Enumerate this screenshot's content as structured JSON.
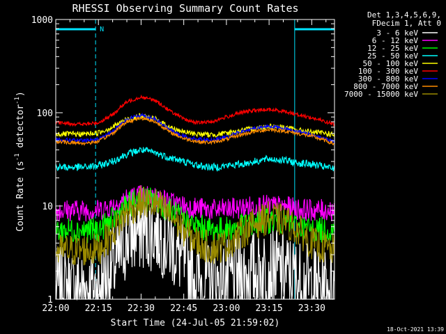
{
  "chart_data": {
    "type": "line",
    "title": "RHESSI Observing Summary Count Rates",
    "xlabel": "Start Time (24-Jul-05 21:59:02)",
    "ylabel_parts": [
      "Count Rate (s",
      "-1",
      " detector",
      "-1",
      ")"
    ],
    "x_ticks": [
      "22:00",
      "22:15",
      "22:30",
      "22:45",
      "23:00",
      "23:15",
      "23:30"
    ],
    "x_tick_minutes": [
      0,
      15,
      30,
      45,
      60,
      75,
      90
    ],
    "y_ticks": [
      "1",
      "10",
      "100",
      "1000"
    ],
    "y_tick_values": [
      1,
      10,
      100,
      1000
    ],
    "x_range_minutes": [
      0,
      98
    ],
    "y_range": [
      1,
      1000
    ],
    "y_scale": "log",
    "legend_header": [
      "Det 1,3,4,5,6,9,",
      "FDecim 1, Att 0"
    ],
    "timestamp": "18-Oct-2021 13:39",
    "night_marker_label": "N",
    "night_intervals_minutes": [
      [
        0,
        14
      ],
      [
        84,
        98
      ]
    ],
    "night_dashed_minutes": [
      14,
      98
    ],
    "night_solid_minutes": [
      0,
      84
    ],
    "colors": {
      "night": "#00e5ff",
      "axes": "#ffffff"
    },
    "series": [
      {
        "name": "3 - 6 keV",
        "color": "#ffffff",
        "x": [
          0,
          15,
          22,
          25,
          30,
          35,
          40,
          45,
          50,
          55,
          60,
          65,
          70,
          75,
          80,
          85,
          90,
          95,
          98
        ],
        "y": [
          1.3,
          1.3,
          2.5,
          4.5,
          5.5,
          5.5,
          4.0,
          2.5,
          1.6,
          1.5,
          1.6,
          1.8,
          2.0,
          2.2,
          2.0,
          1.6,
          1.4,
          1.3,
          1.3
        ],
        "noise": 0.45
      },
      {
        "name": "6 - 12 keV",
        "color": "#ff00ff",
        "x": [
          0,
          15,
          20,
          25,
          30,
          35,
          40,
          45,
          50,
          55,
          60,
          65,
          70,
          75,
          80,
          85,
          90,
          95,
          98
        ],
        "y": [
          9.0,
          9.0,
          10.0,
          12.0,
          13.0,
          12.5,
          11.0,
          10.0,
          9.5,
          9.0,
          9.2,
          9.5,
          10.0,
          10.0,
          9.8,
          9.3,
          9.0,
          9.0,
          9.0
        ],
        "noise": 0.12
      },
      {
        "name": "12 - 25 keV",
        "color": "#00ff00",
        "x": [
          0,
          15,
          20,
          25,
          30,
          35,
          40,
          45,
          50,
          55,
          60,
          65,
          70,
          75,
          80,
          85,
          90,
          95,
          98
        ],
        "y": [
          5.5,
          5.5,
          7.0,
          10.0,
          12.0,
          11.5,
          9.0,
          7.0,
          6.0,
          5.5,
          5.6,
          6.0,
          6.5,
          7.0,
          6.8,
          6.0,
          5.6,
          5.5,
          5.5
        ],
        "noise": 0.14
      },
      {
        "name": "25 - 50 keV",
        "color": "#00ffff",
        "x": [
          0,
          10,
          15,
          20,
          25,
          30,
          35,
          40,
          45,
          50,
          55,
          60,
          65,
          70,
          75,
          80,
          85,
          90,
          95,
          98
        ],
        "y": [
          26,
          26,
          27,
          30,
          36,
          40,
          37,
          33,
          30,
          27,
          26,
          27,
          28,
          30,
          32,
          31,
          29,
          28,
          26,
          25
        ],
        "noise": 0.04
      },
      {
        "name": "50 - 100 keV",
        "color": "#ffff00",
        "x": [
          0,
          10,
          15,
          20,
          25,
          30,
          35,
          40,
          45,
          50,
          55,
          60,
          65,
          70,
          75,
          80,
          85,
          90,
          95,
          98
        ],
        "y": [
          59,
          59,
          61,
          70,
          85,
          92,
          85,
          70,
          62,
          59,
          58,
          60,
          64,
          68,
          72,
          70,
          65,
          62,
          60,
          58
        ],
        "noise": 0.03
      },
      {
        "name": "100 - 300 keV",
        "color": "#ff0000",
        "x": [
          0,
          10,
          15,
          20,
          25,
          30,
          35,
          40,
          45,
          50,
          55,
          60,
          65,
          70,
          75,
          80,
          85,
          90,
          95,
          98
        ],
        "y": [
          78,
          75,
          78,
          95,
          130,
          148,
          135,
          105,
          85,
          78,
          80,
          90,
          100,
          106,
          108,
          104,
          96,
          88,
          80,
          75
        ],
        "noise": 0.02
      },
      {
        "name": "300 - 800 keV",
        "color": "#0000ff",
        "x": [
          0,
          10,
          15,
          20,
          25,
          30,
          35,
          40,
          45,
          50,
          55,
          60,
          65,
          70,
          75,
          80,
          85,
          90,
          95,
          98
        ],
        "y": [
          52,
          50,
          52,
          62,
          85,
          95,
          85,
          65,
          56,
          52,
          51,
          55,
          62,
          68,
          72,
          68,
          63,
          58,
          52,
          48
        ],
        "noise": 0.02
      },
      {
        "name": "800 - 7000 keV",
        "color": "#ff8c00",
        "x": [
          0,
          10,
          15,
          20,
          25,
          30,
          35,
          40,
          45,
          50,
          55,
          60,
          65,
          70,
          75,
          80,
          85,
          90,
          95,
          98
        ],
        "y": [
          49,
          47,
          49,
          60,
          80,
          88,
          80,
          62,
          53,
          49,
          48,
          52,
          58,
          63,
          66,
          64,
          60,
          56,
          50,
          46
        ],
        "noise": 0.02
      },
      {
        "name": "7000 - 15000 keV",
        "color": "#9a8a00",
        "x": [
          0,
          15,
          20,
          25,
          30,
          35,
          40,
          45,
          50,
          55,
          60,
          65,
          70,
          75,
          80,
          85,
          90,
          95,
          98
        ],
        "y": [
          3.3,
          3.4,
          5.0,
          8.5,
          11.0,
          10.5,
          8.0,
          5.5,
          4.0,
          3.5,
          3.8,
          5.0,
          6.5,
          7.5,
          7.0,
          5.5,
          4.0,
          3.5,
          3.3
        ],
        "noise": 0.18
      }
    ]
  }
}
